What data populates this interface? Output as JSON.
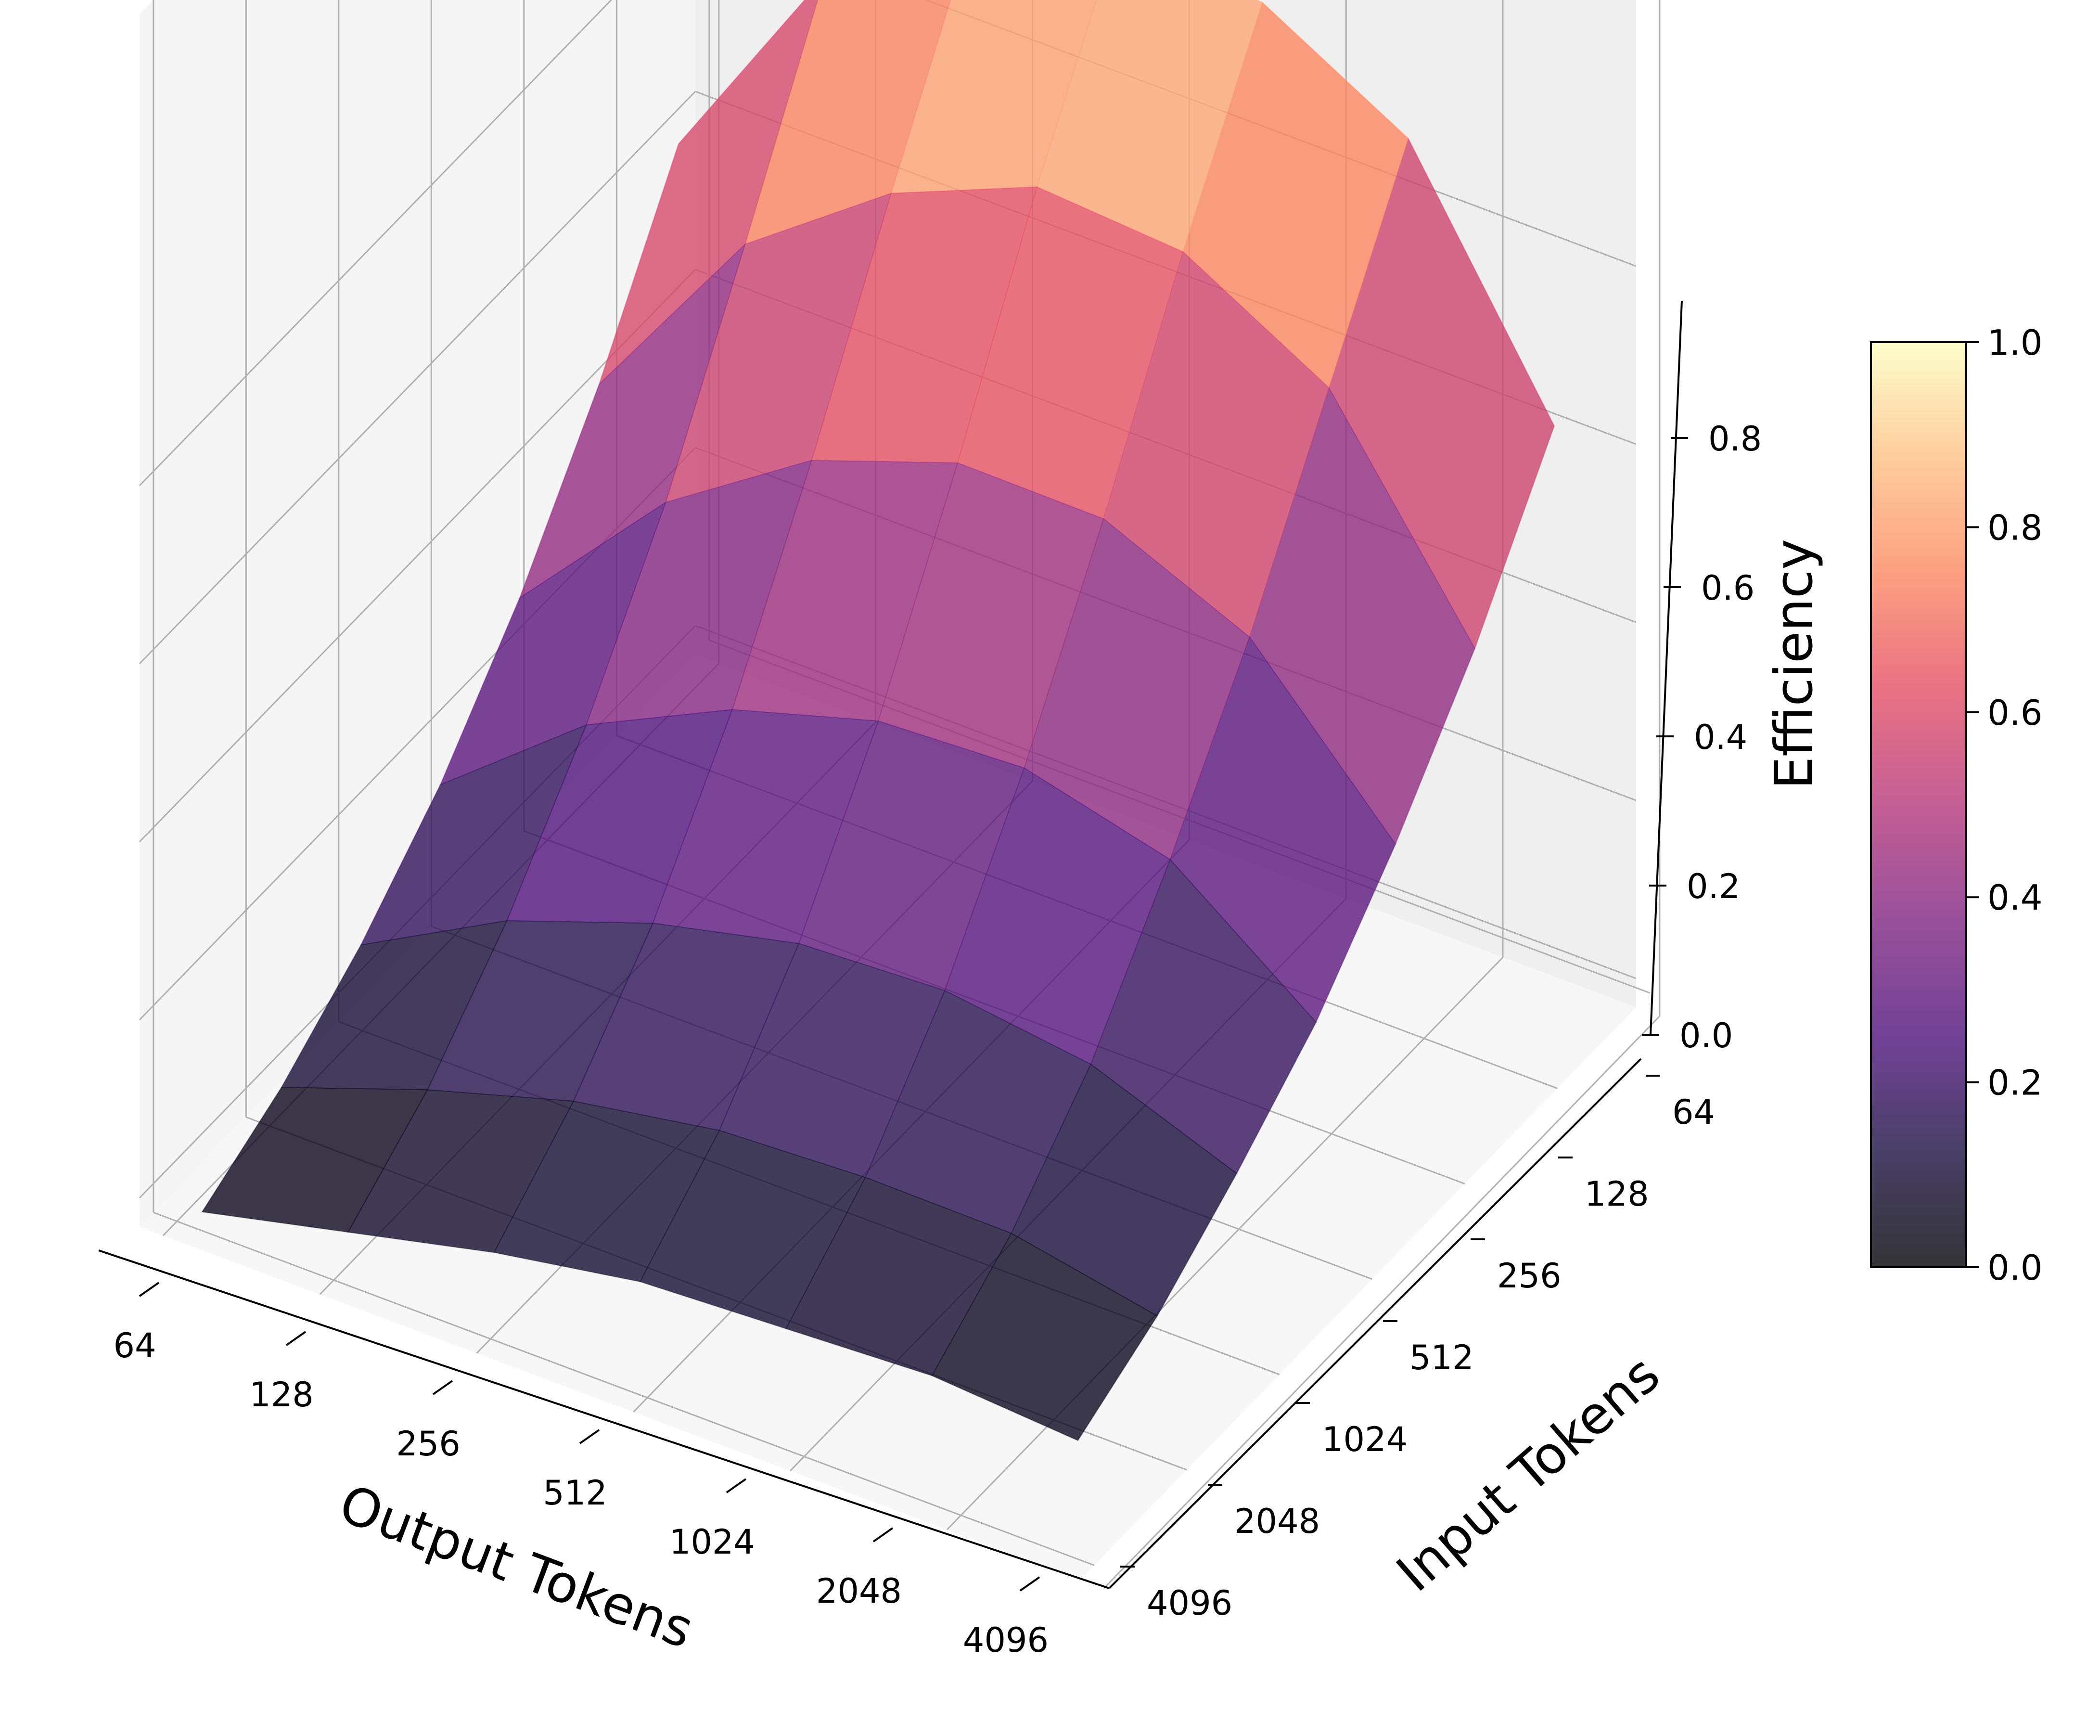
{
  "chart_data": {
    "type": "surface3d",
    "xlabel": "Output Tokens",
    "ylabel": "Input Tokens",
    "zlabel": "Efficiency",
    "x_ticks": [
      "64",
      "128",
      "256",
      "512",
      "1024",
      "2048",
      "4096"
    ],
    "y_ticks": [
      "64",
      "128",
      "256",
      "512",
      "1024",
      "2048",
      "4096"
    ],
    "z_ticks": [
      "0.0",
      "0.2",
      "0.4",
      "0.6",
      "0.8"
    ],
    "zlim": [
      0,
      0.95
    ],
    "colorbar": {
      "colormap": "magma",
      "range": [
        0,
        1
      ],
      "ticks": [
        "0.0",
        "0.2",
        "0.4",
        "0.6",
        "0.8",
        "1.0"
      ]
    },
    "grid": true,
    "values_by_input": [
      {
        "input": "64",
        "efficiency": [
          0.56,
          0.79,
          0.88,
          0.92,
          0.89,
          0.78,
          0.5
        ]
      },
      {
        "input": "128",
        "efficiency": [
          0.4,
          0.6,
          0.7,
          0.75,
          0.72,
          0.61,
          0.36
        ]
      },
      {
        "input": "256",
        "efficiency": [
          0.27,
          0.42,
          0.51,
          0.55,
          0.53,
          0.44,
          0.25
        ]
      },
      {
        "input": "512",
        "efficiency": [
          0.17,
          0.28,
          0.34,
          0.37,
          0.36,
          0.3,
          0.16
        ]
      },
      {
        "input": "1024",
        "efficiency": [
          0.1,
          0.17,
          0.21,
          0.23,
          0.22,
          0.18,
          0.1
        ]
      },
      {
        "input": "2048",
        "efficiency": [
          0.05,
          0.09,
          0.12,
          0.13,
          0.12,
          0.1,
          0.05
        ]
      },
      {
        "input": "4096",
        "efficiency": [
          0.02,
          0.04,
          0.06,
          0.07,
          0.06,
          0.05,
          0.02
        ]
      }
    ]
  }
}
